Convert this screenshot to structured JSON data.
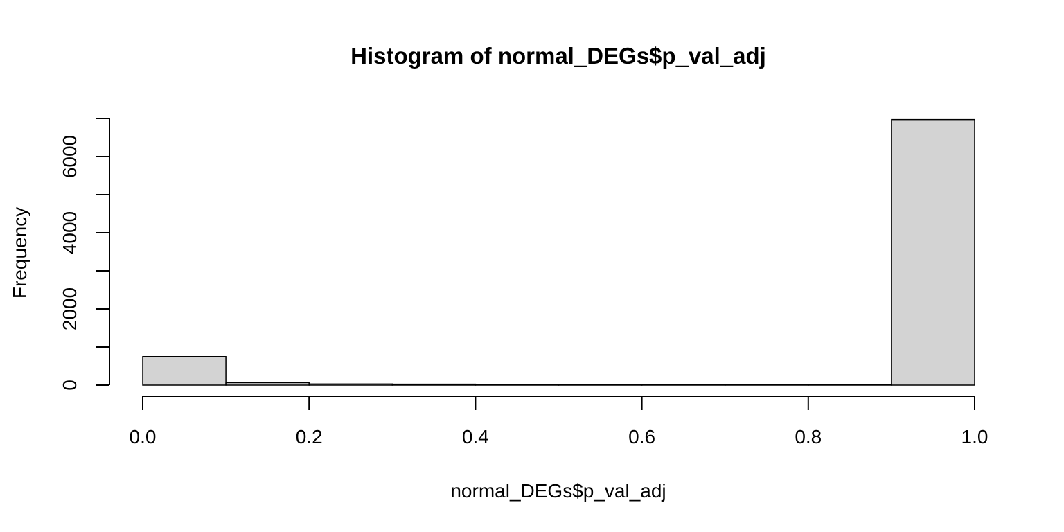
{
  "chart_data": {
    "type": "bar",
    "title": "Histogram of normal_DEGs$p_val_adj",
    "xlabel": "normal_DEGs$p_val_adj",
    "ylabel": "Frequency",
    "bins": [
      {
        "start": 0.0,
        "end": 0.1,
        "value": 750
      },
      {
        "start": 0.1,
        "end": 0.2,
        "value": 65
      },
      {
        "start": 0.2,
        "end": 0.3,
        "value": 30
      },
      {
        "start": 0.3,
        "end": 0.4,
        "value": 25
      },
      {
        "start": 0.4,
        "end": 0.5,
        "value": 18
      },
      {
        "start": 0.5,
        "end": 0.6,
        "value": 15
      },
      {
        "start": 0.6,
        "end": 0.7,
        "value": 12
      },
      {
        "start": 0.7,
        "end": 0.8,
        "value": 10
      },
      {
        "start": 0.8,
        "end": 0.9,
        "value": 8
      },
      {
        "start": 0.9,
        "end": 1.0,
        "value": 6970
      }
    ],
    "xlim": [
      0.0,
      1.0
    ],
    "ylim": [
      0,
      7000
    ],
    "x_ticks": [
      "0.0",
      "0.2",
      "0.4",
      "0.6",
      "0.8",
      "1.0"
    ],
    "y_ticks": [
      0,
      1000,
      2000,
      3000,
      4000,
      5000,
      6000,
      7000
    ],
    "y_tick_labels": [
      "0",
      "",
      "2000",
      "",
      "4000",
      "",
      "6000",
      ""
    ],
    "bar_color": "#d3d3d3",
    "outline_color": "#000000",
    "grid": false,
    "legend": "none"
  }
}
